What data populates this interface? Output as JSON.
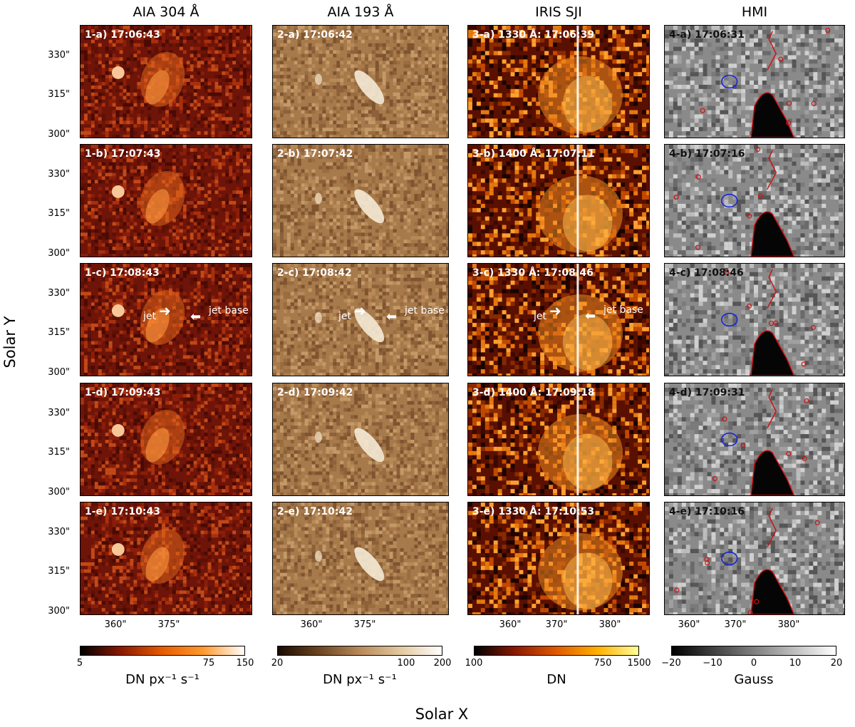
{
  "columns": [
    {
      "title": "AIA 304 Å"
    },
    {
      "title": "AIA 193 Å"
    },
    {
      "title": "IRIS SJI"
    },
    {
      "title": "HMI"
    }
  ],
  "rows": [
    {
      "labels": [
        "1-a) 17:06:43",
        "2-a) 17:06:42",
        "3-a) 1330 Å: 17:06:39",
        "4-a) 17:06:31"
      ]
    },
    {
      "labels": [
        "1-b) 17:07:43",
        "2-b) 17:07:42",
        "3-b) 1400 Å: 17:07:11",
        "4-b) 17:07:16"
      ]
    },
    {
      "labels": [
        "1-c) 17:08:43",
        "2-c) 17:08:42",
        "3-c) 1330 Å: 17:08:46",
        "4-c) 17:08:46"
      ]
    },
    {
      "labels": [
        "1-d) 17:09:43",
        "2-d) 17:09:42",
        "3-d) 1400 Å: 17:09:18",
        "4-d) 17:09:31"
      ]
    },
    {
      "labels": [
        "1-e) 17:10:43",
        "2-e) 17:10:42",
        "3-e) 1330 Å: 17:10:53",
        "4-e) 17:10:16"
      ]
    }
  ],
  "annotations": {
    "jet": "jet",
    "jet_base": "jet base"
  },
  "y_ticks": [
    "330\"",
    "315\"",
    "300\""
  ],
  "x_ticks_aia": [
    "360\"",
    "375\""
  ],
  "x_ticks_iris_hmi": [
    "360\"",
    "370\"",
    "380\""
  ],
  "axis_titles": {
    "y": "Solar Y",
    "x": "Solar X"
  },
  "colorbars": [
    {
      "ticks": [
        "5",
        "75",
        "150"
      ],
      "label": "DN px⁻¹ s⁻¹",
      "colors": [
        "#000000",
        "#8a1a00",
        "#e65c00",
        "#ff9a30",
        "#ffffff"
      ]
    },
    {
      "ticks": [
        "20",
        "100",
        "200"
      ],
      "label": "DN px⁻¹ s⁻¹",
      "colors": [
        "#1a0a00",
        "#6b4422",
        "#b8895a",
        "#e3c9a0",
        "#ffffff"
      ]
    },
    {
      "ticks": [
        "100",
        "750",
        "1500"
      ],
      "label": "DN",
      "colors": [
        "#000000",
        "#8a1a00",
        "#e05a00",
        "#ffb000",
        "#ffff99"
      ]
    },
    {
      "ticks": [
        "−20",
        "−10",
        "0",
        "10",
        "20"
      ],
      "label": "Gauss",
      "colors": [
        "#000000",
        "#555555",
        "#aaaaaa",
        "#ffffff"
      ]
    }
  ]
}
